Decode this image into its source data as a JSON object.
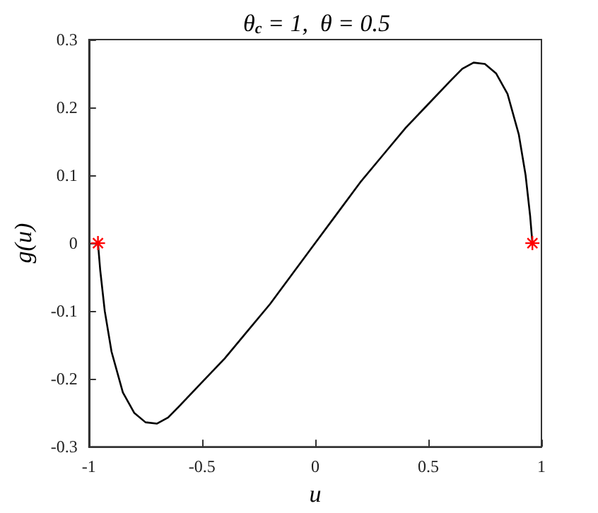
{
  "chart_data": {
    "type": "line",
    "title": "θ$_{c}$ = 1,  θ = 0.5",
    "xlabel": "u",
    "ylabel": "g(u)",
    "xlim": [
      -1,
      1
    ],
    "xticks": [
      -1,
      -0.5,
      0,
      0.5,
      1
    ],
    "ylim": [
      -0.3,
      0.3
    ],
    "yticks": [
      -0.3,
      -0.2,
      -0.1,
      0,
      0.1,
      0.2,
      0.3
    ],
    "grid": false,
    "series": [
      {
        "color": "#000000",
        "marker": "none",
        "line_style": "solid",
        "x": [
          -0.96,
          -0.95,
          -0.93,
          -0.9,
          -0.85,
          -0.8,
          -0.75,
          -0.7,
          -0.65,
          -0.6,
          -0.5,
          -0.4,
          -0.3,
          -0.2,
          -0.1,
          0,
          0.1,
          0.2,
          0.3,
          0.4,
          0.5,
          0.6,
          0.65,
          0.7,
          0.75,
          0.8,
          0.85,
          0.9,
          0.93,
          0.95,
          0.96
        ],
        "values": [
          0,
          -0.04,
          -0.1,
          -0.16,
          -0.22,
          -0.25,
          -0.264,
          -0.266,
          -0.257,
          -0.24,
          -0.205,
          -0.17,
          -0.13,
          -0.09,
          -0.045,
          0,
          0.045,
          0.09,
          0.13,
          0.17,
          0.205,
          0.24,
          0.257,
          0.266,
          0.264,
          0.25,
          0.22,
          0.16,
          0.1,
          0.04,
          0
        ]
      },
      {
        "type": "scatter",
        "color": "#ff0000",
        "marker": "cross",
        "x": [
          -0.96,
          0.96
        ],
        "values": [
          0,
          0
        ]
      }
    ]
  }
}
